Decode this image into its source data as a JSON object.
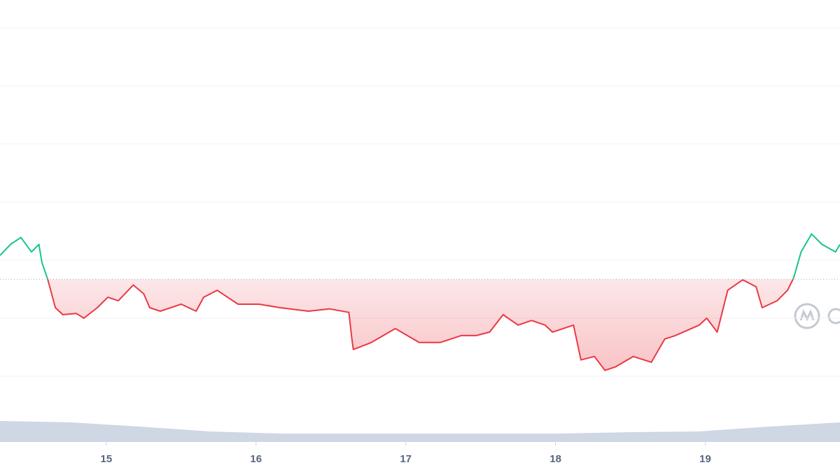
{
  "chart_data": {
    "type": "line",
    "x": [
      14.29,
      14.36,
      14.43,
      14.5,
      14.55,
      14.57,
      14.61,
      14.66,
      14.71,
      14.8,
      14.85,
      14.94,
      15.01,
      15.08,
      15.18,
      15.25,
      15.29,
      15.36,
      15.5,
      15.6,
      15.65,
      15.74,
      15.81,
      15.88,
      16.02,
      16.16,
      16.35,
      16.49,
      16.62,
      16.64,
      16.65,
      16.77,
      16.93,
      17.09,
      17.23,
      17.37,
      17.47,
      17.56,
      17.65,
      17.75,
      17.84,
      17.93,
      17.98,
      18.12,
      18.17,
      18.26,
      18.33,
      18.4,
      18.52,
      18.64,
      18.73,
      18.8,
      18.96,
      19.01,
      19.08,
      19.15,
      19.25,
      19.34,
      19.38,
      19.48,
      19.55,
      19.59,
      19.64,
      19.71,
      19.78,
      19.87,
      19.9
    ],
    "series": [
      {
        "values": [
          3.08,
          3.27,
          3.39,
          3.14,
          3.27,
          2.96,
          2.66,
          2.18,
          2.06,
          2.08,
          2.0,
          2.18,
          2.36,
          2.3,
          2.57,
          2.42,
          2.18,
          2.12,
          2.24,
          2.12,
          2.36,
          2.48,
          2.36,
          2.24,
          2.24,
          2.18,
          2.12,
          2.16,
          2.1,
          1.64,
          1.46,
          1.58,
          1.82,
          1.58,
          1.58,
          1.7,
          1.7,
          1.76,
          2.06,
          1.88,
          1.96,
          1.88,
          1.76,
          1.88,
          1.28,
          1.34,
          1.1,
          1.16,
          1.34,
          1.24,
          1.64,
          1.7,
          1.88,
          2.0,
          1.76,
          2.48,
          2.66,
          2.54,
          2.18,
          2.3,
          2.48,
          2.69,
          3.14,
          3.45,
          3.27,
          3.14,
          3.27
        ],
        "color_up": "#16c784",
        "color_down": "#ea3943"
      }
    ],
    "reference": 2.67,
    "volume": {
      "x": [
        14.29,
        14.76,
        15.22,
        15.69,
        16.16,
        16.63,
        17.09,
        17.56,
        18.03,
        18.5,
        18.96,
        19.43,
        19.67,
        19.9
      ],
      "values": [
        0.3,
        0.28,
        0.22,
        0.15,
        0.12,
        0.12,
        0.12,
        0.12,
        0.12,
        0.14,
        0.15,
        0.22,
        0.25,
        0.28
      ],
      "lim": [
        0,
        1
      ],
      "color": "#cfd6e4"
    },
    "xlim": [
      14.29,
      19.9
    ],
    "xticks": [
      15,
      16,
      17,
      18,
      19
    ],
    "ylim": [
      0,
      7.48
    ],
    "gridlines": [
      1,
      2,
      3,
      4,
      5,
      6,
      7
    ],
    "grid": true
  }
}
